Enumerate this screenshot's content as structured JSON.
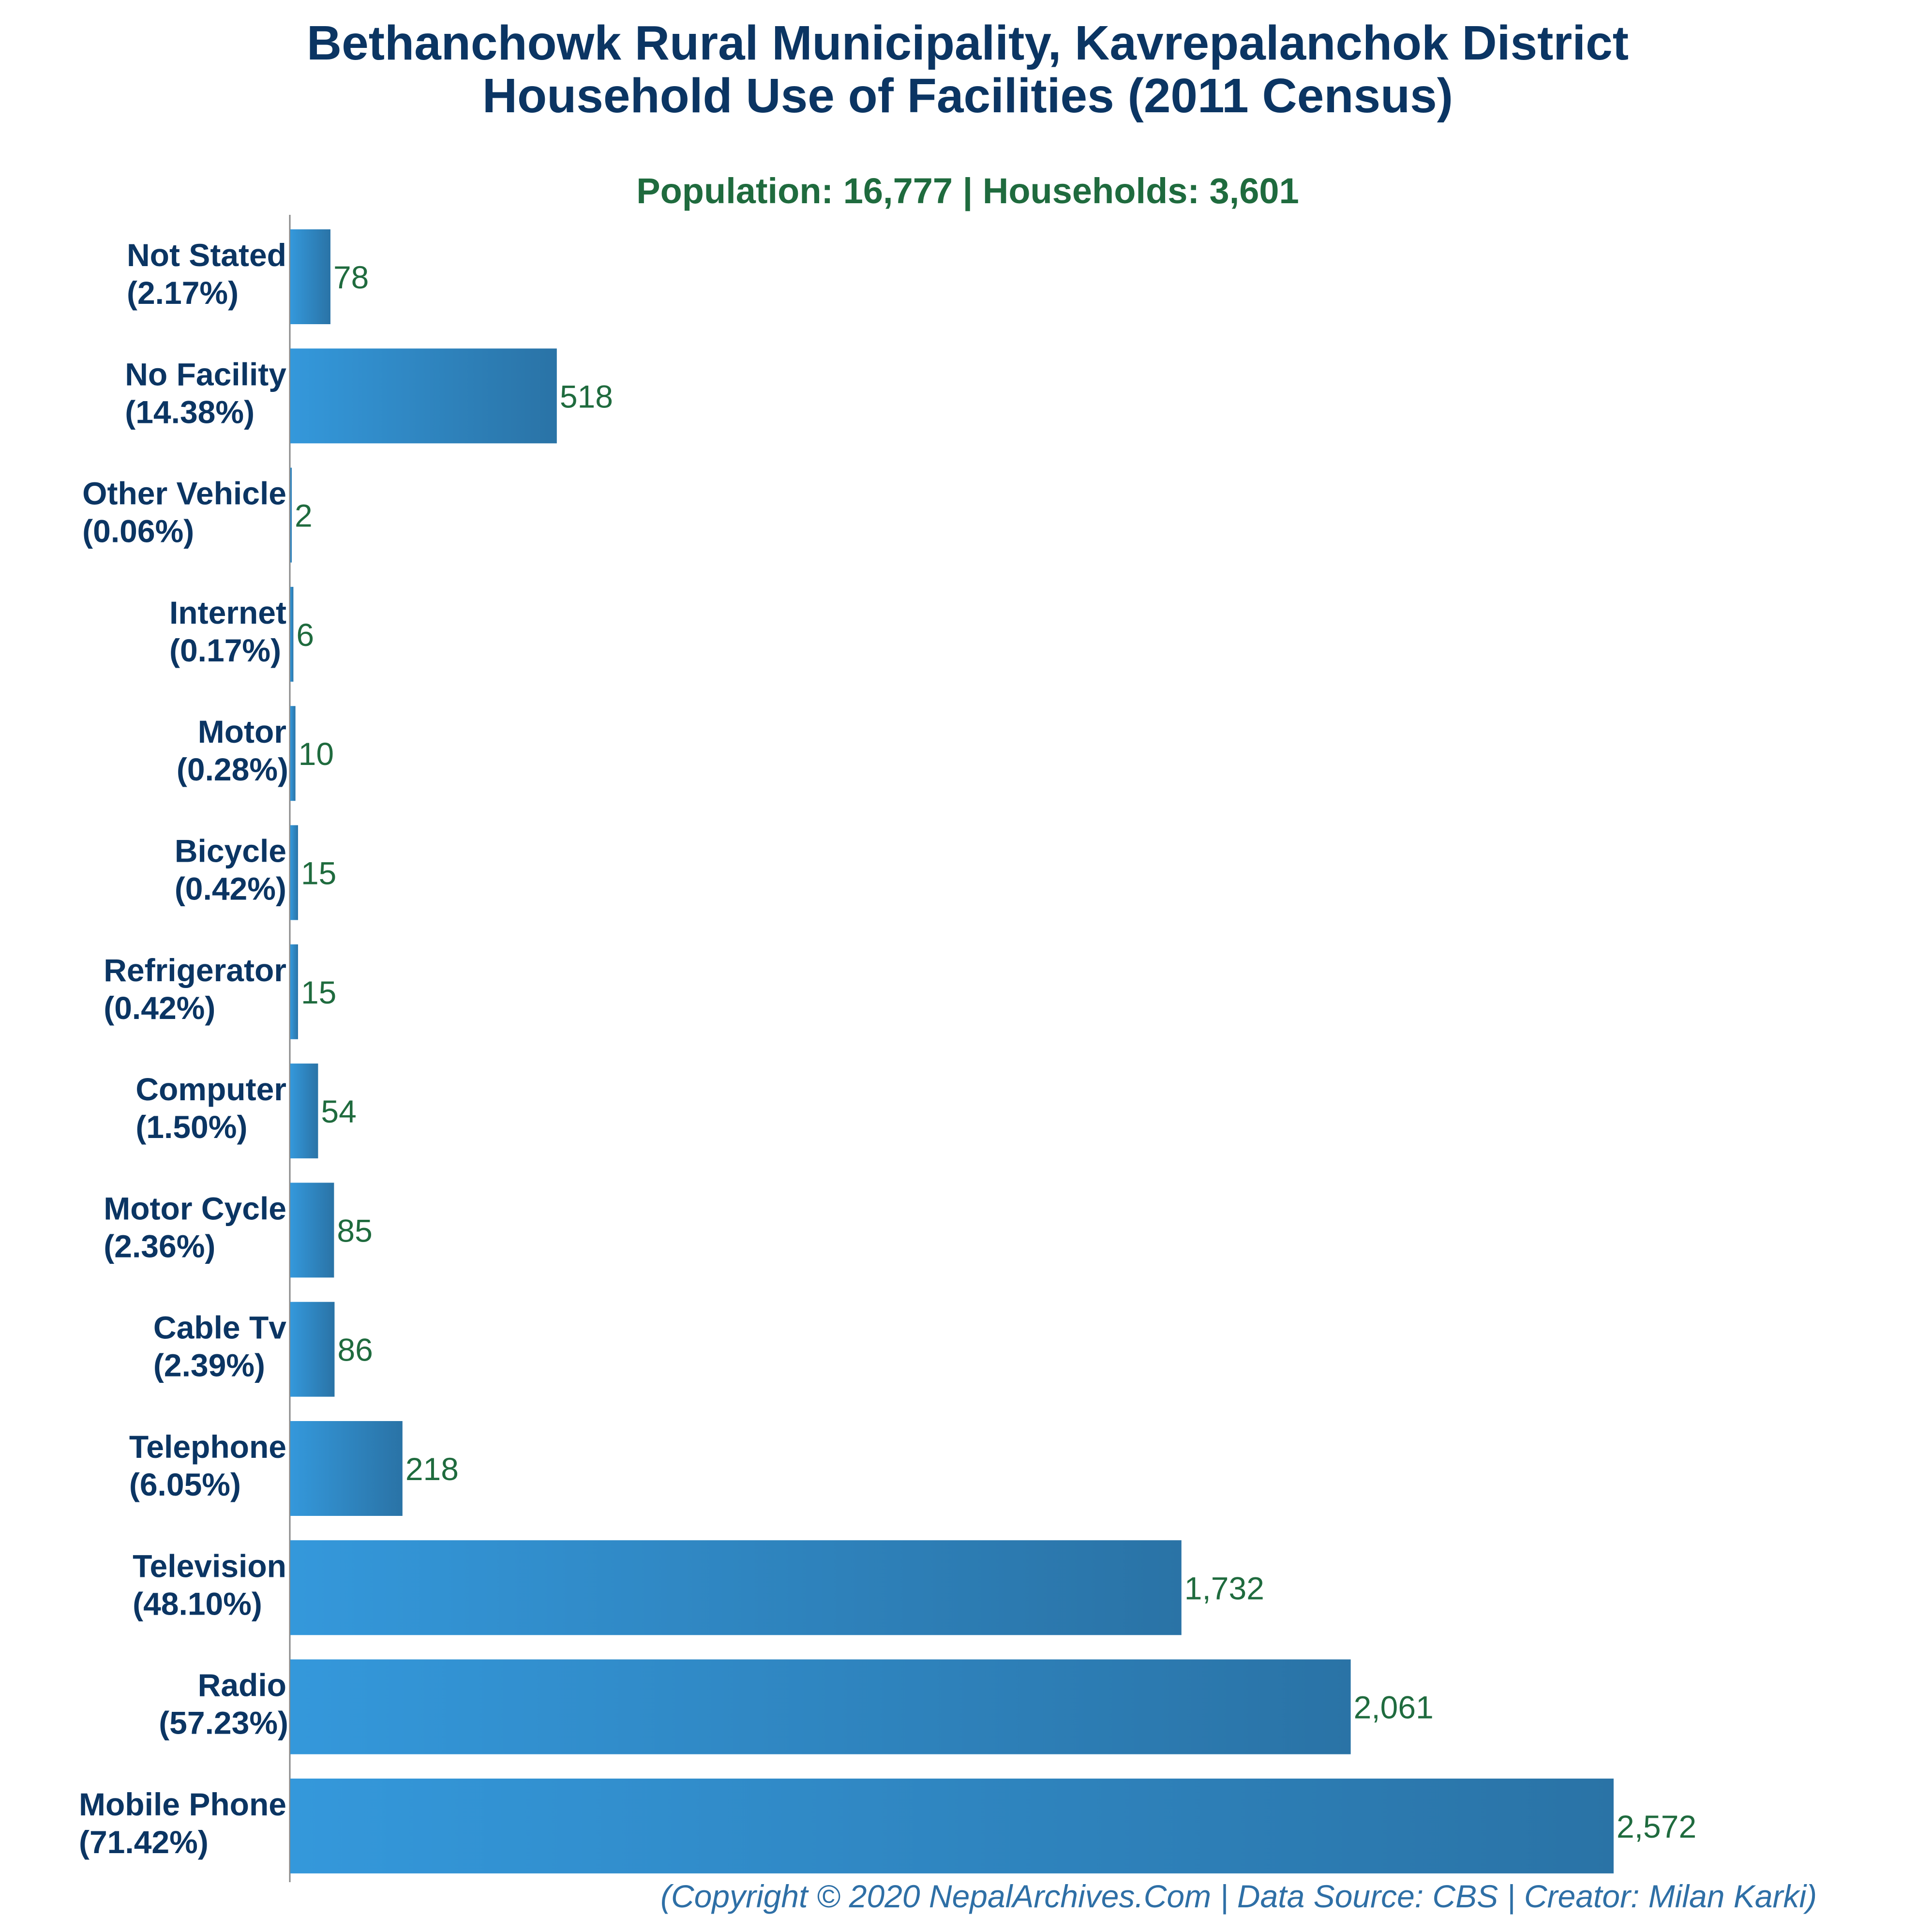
{
  "chart_data": {
    "type": "bar",
    "orientation": "horizontal",
    "title": [
      "Bethanchowk Rural Municipality, Kavrepalanchok District",
      "Household Use of Facilities (2011 Census)"
    ],
    "subtitle": "Population: 16,777 | Households: 3,601",
    "footer": "(Copyright © 2020 NepalArchives.Com | Data Source: CBS | Creator: Milan Karki)",
    "categories": [
      "Not Stated",
      "No Facility",
      "Other Vehicle",
      "Internet",
      "Motor",
      "Bicycle",
      "Refrigerator",
      "Computer",
      "Motor Cycle",
      "Cable Tv",
      "Telephone",
      "Television",
      "Radio",
      "Mobile Phone"
    ],
    "percent_labels": [
      "(2.17%)",
      "(14.38%)",
      "(0.06%)",
      "(0.17%)",
      "(0.28%)",
      "(0.42%)",
      "(0.42%)",
      "(1.50%)",
      "(2.36%)",
      "(2.39%)",
      "(6.05%)",
      "(48.10%)",
      "(57.23%)",
      "(71.42%)"
    ],
    "values": [
      78,
      518,
      2,
      6,
      10,
      15,
      15,
      54,
      85,
      86,
      218,
      1732,
      2061,
      2572
    ],
    "value_labels": [
      "78",
      "518",
      "2",
      "6",
      "10",
      "15",
      "15",
      "54",
      "85",
      "86",
      "218",
      "1,732",
      "2,061",
      "2,572"
    ],
    "xlim": [
      0,
      2572
    ],
    "xlabel": "",
    "ylabel": "",
    "grid": false,
    "legend": "none",
    "colors": {
      "bar_light": "#3498db",
      "bar_dark": "#2a73a6",
      "title": "#0b3563",
      "subtitle": "#1f6b3e",
      "value": "#1f6b3e",
      "footer": "#2e6fa6",
      "axis": "#888888"
    }
  }
}
